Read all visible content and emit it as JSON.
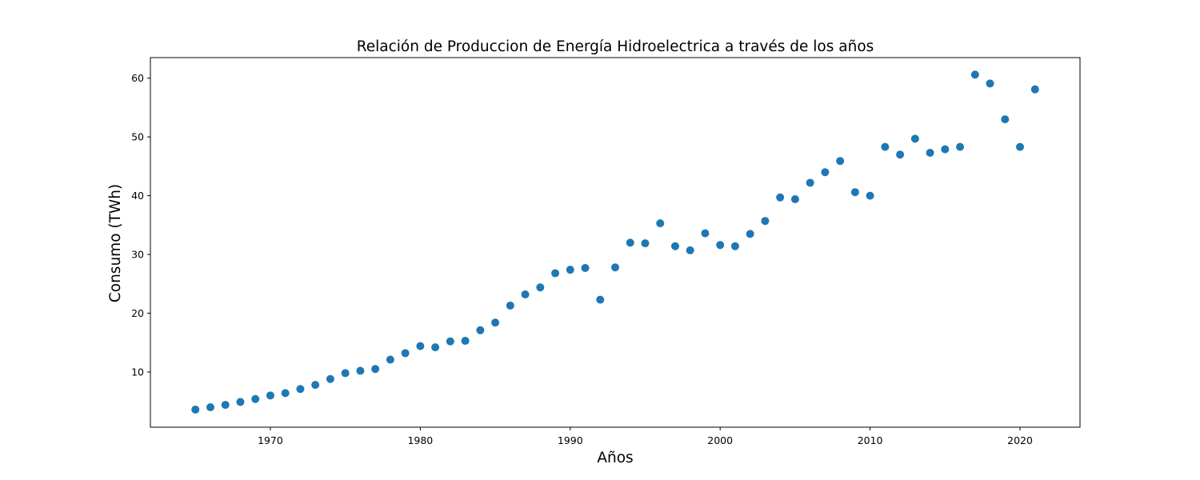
{
  "chart_data": {
    "type": "scatter",
    "title": "Relación de Produccion de Energía Hidroelectrica a través de los años",
    "xlabel": "Años",
    "ylabel": "Consumo (TWh)",
    "xlim": [
      1962,
      2024
    ],
    "ylim": [
      0.6,
      63.5
    ],
    "xticks": [
      1970,
      1980,
      1990,
      2000,
      2010,
      2020
    ],
    "yticks": [
      10,
      20,
      30,
      40,
      50,
      60
    ],
    "grid": false,
    "marker_color": "#1f77b4",
    "series": [
      {
        "name": "Hidroelectrica",
        "x": [
          1965,
          1966,
          1967,
          1968,
          1969,
          1970,
          1971,
          1972,
          1973,
          1974,
          1975,
          1976,
          1977,
          1978,
          1979,
          1980,
          1981,
          1982,
          1983,
          1984,
          1985,
          1986,
          1987,
          1988,
          1989,
          1990,
          1991,
          1992,
          1993,
          1994,
          1995,
          1996,
          1997,
          1998,
          1999,
          2000,
          2001,
          2002,
          2003,
          2004,
          2005,
          2006,
          2007,
          2008,
          2009,
          2010,
          2011,
          2012,
          2013,
          2014,
          2015,
          2016,
          2017,
          2018,
          2019,
          2020,
          2021
        ],
        "y": [
          3.6,
          4.0,
          4.4,
          4.9,
          5.4,
          6.0,
          6.4,
          7.1,
          7.8,
          8.8,
          9.8,
          10.2,
          10.5,
          12.1,
          13.2,
          14.4,
          14.2,
          15.2,
          15.3,
          17.1,
          18.4,
          21.3,
          23.2,
          24.4,
          26.8,
          27.4,
          27.7,
          22.3,
          27.8,
          32.0,
          31.9,
          35.3,
          31.4,
          30.7,
          33.6,
          31.6,
          31.4,
          33.5,
          35.7,
          39.7,
          39.4,
          42.2,
          44.0,
          45.9,
          40.6,
          40.0,
          48.3,
          47.0,
          49.7,
          47.3,
          47.9,
          48.3,
          60.6,
          59.1,
          53.0,
          48.3,
          58.1
        ]
      }
    ]
  }
}
